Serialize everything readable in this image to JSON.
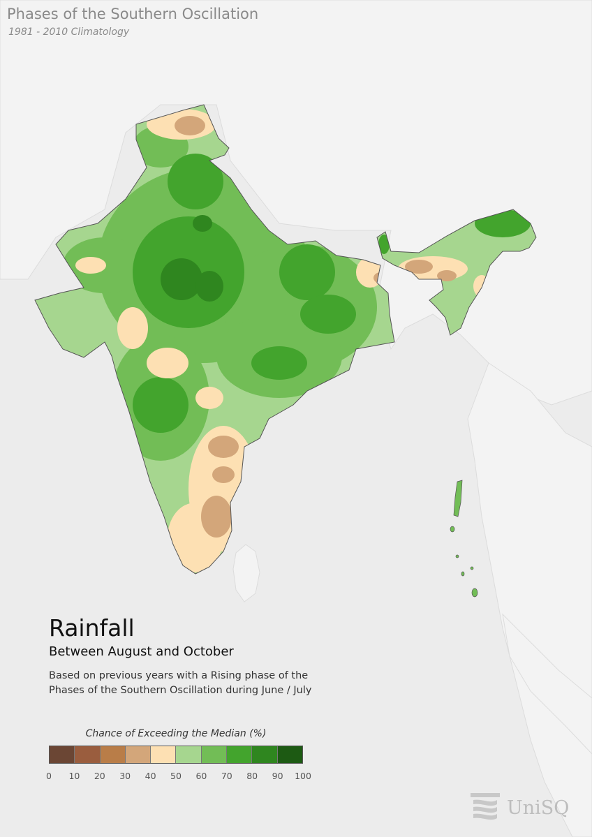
{
  "header": {
    "title": "Phases of the Southern Oscillation",
    "subtitle": "1981 - 2010 Climatology"
  },
  "main": {
    "title": "Rainfall",
    "period": "Between August and October",
    "description": "Based on previous years with a Rising phase of the Phases of the Southern Oscillation during June / July"
  },
  "legend": {
    "title": "Chance of Exceeding the Median (%)",
    "ticks": [
      "0",
      "10",
      "20",
      "30",
      "40",
      "50",
      "60",
      "70",
      "80",
      "90",
      "100"
    ],
    "colors": [
      "#6b4634",
      "#9a5d3e",
      "#b97d48",
      "#d3a67a",
      "#fde0b3",
      "#a6d68f",
      "#72bd56",
      "#43a42d",
      "#2f861f",
      "#1d5a13"
    ]
  },
  "map": {
    "land_color": "#f2f2f2",
    "sea_color": "#ececec",
    "border_color": "#9a9a9a"
  },
  "logo": {
    "text": "UniSQ",
    "icon": "unisq-logo-icon"
  }
}
